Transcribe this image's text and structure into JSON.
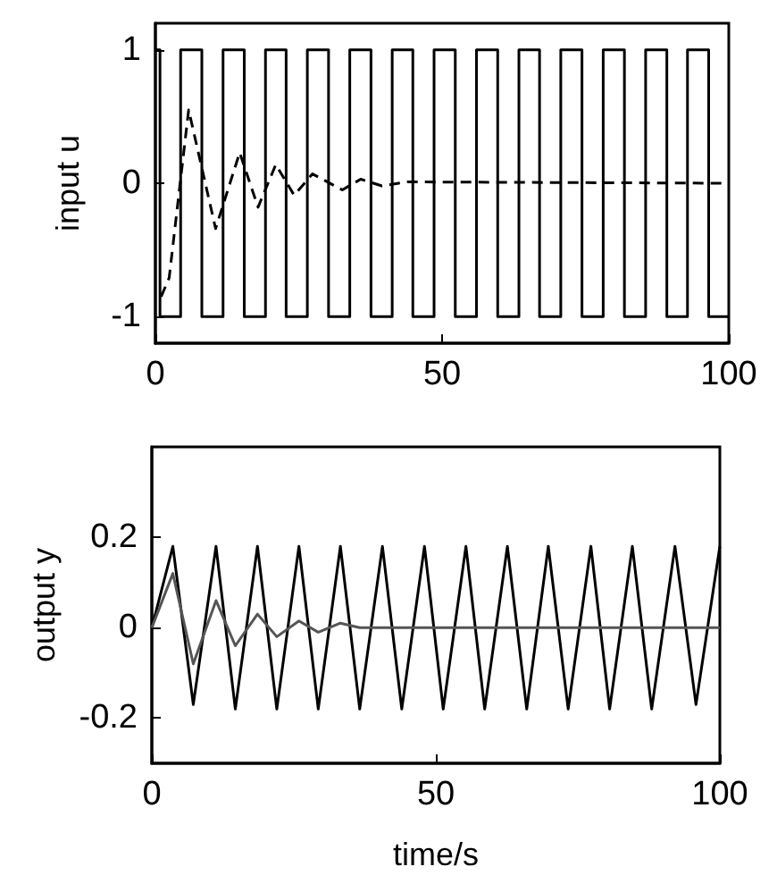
{
  "chart_data": [
    {
      "type": "step",
      "ylabel": "input u",
      "xlim": [
        0,
        100
      ],
      "ylim": [
        -1.2,
        1.2
      ],
      "xticks": [
        0,
        50,
        100
      ],
      "yticks": [
        -1,
        0,
        1
      ],
      "grid": false,
      "marker": "none",
      "series": [
        {
          "color": "#000000",
          "line_style": "solid",
          "x": [
            0,
            0.8,
            4.4,
            8.1,
            11.8,
            15.5,
            19.2,
            22.8,
            26.5,
            30.2,
            33.9,
            37.6,
            41.3,
            44.9,
            48.6,
            52.3,
            56.0,
            59.7,
            63.4,
            67.0,
            70.7,
            74.4,
            78.1,
            81.8,
            85.5,
            89.2,
            92.8,
            96.5,
            100
          ],
          "values": [
            1,
            -1,
            1,
            -1,
            1,
            -1,
            1,
            -1,
            1,
            -1,
            1,
            -1,
            1,
            -1,
            1,
            -1,
            1,
            -1,
            1,
            -1,
            1,
            -1,
            1,
            -1,
            1,
            -1,
            1,
            -1,
            -1
          ]
        },
        {
          "type": "line",
          "color": "#000000",
          "line_style": "dashed",
          "x": [
            1.0,
            2.4,
            5.8,
            10.5,
            14.7,
            17.9,
            21,
            24.2,
            27.4,
            32.6,
            35.8,
            39.5,
            44,
            100
          ],
          "values": [
            -0.85,
            -0.71,
            0.55,
            -0.34,
            0.23,
            -0.18,
            0.14,
            -0.09,
            0.07,
            -0.05,
            0.03,
            -0.02,
            0.01,
            0
          ]
        }
      ]
    },
    {
      "type": "line",
      "xlabel": "time/s",
      "ylabel": "output y",
      "xlim": [
        0,
        100
      ],
      "ylim": [
        -0.3,
        0.4
      ],
      "xticks": [
        0,
        50,
        100
      ],
      "yticks": [
        -0.2,
        0,
        0.2
      ],
      "grid": false,
      "marker": "none",
      "series": [
        {
          "color": "#000000",
          "line_style": "solid",
          "x": [
            0,
            3.7,
            7.3,
            11.3,
            14.7,
            18.6,
            22,
            25.9,
            29.3,
            33.2,
            36.6,
            40.6,
            44,
            48,
            51.3,
            55.3,
            58.6,
            62.6,
            66,
            69.8,
            73.3,
            77.3,
            80.6,
            84.6,
            88,
            92.1,
            95.8,
            100
          ],
          "values": [
            0,
            0.18,
            -0.17,
            0.18,
            -0.18,
            0.18,
            -0.18,
            0.18,
            -0.18,
            0.18,
            -0.18,
            0.18,
            -0.18,
            0.18,
            -0.18,
            0.18,
            -0.18,
            0.18,
            -0.18,
            0.18,
            -0.18,
            0.18,
            -0.18,
            0.18,
            -0.18,
            0.18,
            -0.17,
            0.18
          ]
        },
        {
          "color": "#555555",
          "line_style": "solid",
          "x": [
            0,
            3.7,
            7.3,
            11.3,
            14.7,
            18.6,
            22,
            25.9,
            29.3,
            33.2,
            36.6,
            100
          ],
          "values": [
            0,
            0.12,
            -0.08,
            0.06,
            -0.04,
            0.03,
            -0.02,
            0.015,
            -0.01,
            0.01,
            0,
            0
          ]
        }
      ]
    }
  ]
}
